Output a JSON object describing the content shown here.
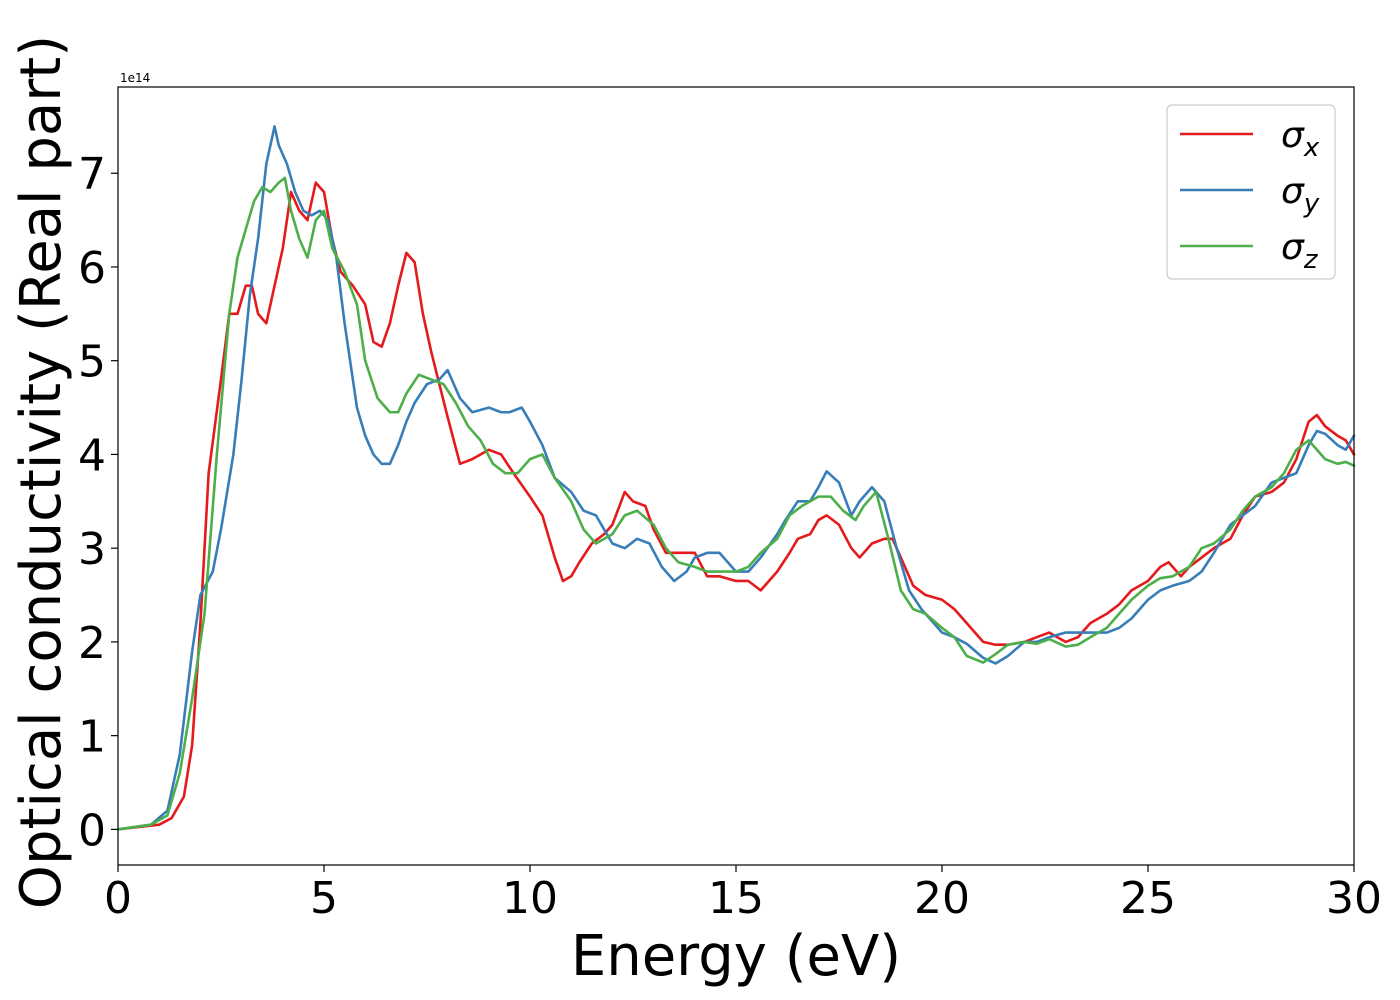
{
  "chart_data": {
    "type": "line",
    "title": "",
    "xlabel": "Energy (eV)",
    "ylabel": "Optical conductivity (Real part)",
    "offset_label": "1e14",
    "xlim": [
      0,
      30
    ],
    "ylim": [
      -0.38,
      7.92
    ],
    "y_scale": "1e14",
    "xticks": [
      0,
      5,
      10,
      15,
      20,
      25,
      30
    ],
    "yticks": [
      0,
      1,
      2,
      3,
      4,
      5,
      6,
      7
    ],
    "grid": false,
    "legend_placement": "top-right",
    "series": [
      {
        "name": "σx",
        "legend_base": "σ",
        "legend_sub": "x",
        "color": "#e41a1c",
        "x": [
          0,
          1,
          1.3,
          1.6,
          1.8,
          2.0,
          2.2,
          2.5,
          2.7,
          2.9,
          3.1,
          3.25,
          3.4,
          3.6,
          3.8,
          4.0,
          4.2,
          4.4,
          4.6,
          4.8,
          5.0,
          5.2,
          5.4,
          5.7,
          6.0,
          6.2,
          6.4,
          6.6,
          6.8,
          7.0,
          7.2,
          7.4,
          7.6,
          8.0,
          8.3,
          8.6,
          9.0,
          9.3,
          9.6,
          10.0,
          10.3,
          10.6,
          10.8,
          11.0,
          11.2,
          11.5,
          11.8,
          12.0,
          12.3,
          12.5,
          12.8,
          13.0,
          13.3,
          13.6,
          14.0,
          14.3,
          14.6,
          15.0,
          15.3,
          15.6,
          16.0,
          16.3,
          16.5,
          16.8,
          17.0,
          17.2,
          17.5,
          17.8,
          18.0,
          18.3,
          18.6,
          18.8,
          19.0,
          19.3,
          19.6,
          20.0,
          20.3,
          20.6,
          21.0,
          21.3,
          21.6,
          22.0,
          22.3,
          22.6,
          23.0,
          23.3,
          23.6,
          24.0,
          24.3,
          24.6,
          25.0,
          25.3,
          25.5,
          25.8,
          26.0,
          26.3,
          26.6,
          27.0,
          27.3,
          27.6,
          28.0,
          28.3,
          28.6,
          28.9,
          29.1,
          29.3,
          29.6,
          29.8,
          30.0
        ],
        "values": [
          0,
          0.05,
          0.12,
          0.35,
          0.9,
          2.2,
          3.8,
          4.8,
          5.5,
          5.5,
          5.8,
          5.8,
          5.5,
          5.4,
          5.8,
          6.2,
          6.8,
          6.6,
          6.5,
          6.9,
          6.8,
          6.3,
          5.95,
          5.8,
          5.6,
          5.2,
          5.15,
          5.4,
          5.8,
          6.15,
          6.05,
          5.5,
          5.1,
          4.4,
          3.9,
          3.95,
          4.05,
          4.0,
          3.8,
          3.55,
          3.35,
          2.9,
          2.65,
          2.7,
          2.85,
          3.05,
          3.15,
          3.25,
          3.6,
          3.5,
          3.45,
          3.2,
          2.95,
          2.95,
          2.95,
          2.7,
          2.7,
          2.65,
          2.65,
          2.55,
          2.75,
          2.95,
          3.1,
          3.15,
          3.3,
          3.35,
          3.25,
          3.0,
          2.9,
          3.05,
          3.1,
          3.1,
          2.9,
          2.6,
          2.5,
          2.45,
          2.35,
          2.2,
          2.0,
          1.97,
          1.97,
          2.0,
          2.05,
          2.1,
          2.0,
          2.05,
          2.2,
          2.3,
          2.4,
          2.55,
          2.65,
          2.8,
          2.85,
          2.7,
          2.8,
          2.9,
          3.0,
          3.1,
          3.35,
          3.55,
          3.6,
          3.7,
          3.95,
          4.35,
          4.42,
          4.3,
          4.2,
          4.15,
          4.0
        ]
      },
      {
        "name": "σy",
        "legend_base": "σ",
        "legend_sub": "y",
        "color": "#377eb8",
        "x": [
          0,
          0.8,
          1.2,
          1.5,
          1.8,
          2.0,
          2.3,
          2.5,
          2.8,
          3.0,
          3.2,
          3.4,
          3.6,
          3.8,
          3.9,
          4.1,
          4.3,
          4.5,
          4.7,
          4.9,
          5.1,
          5.3,
          5.5,
          5.8,
          6.0,
          6.2,
          6.4,
          6.6,
          6.8,
          7.0,
          7.2,
          7.5,
          7.8,
          8.0,
          8.3,
          8.6,
          9.0,
          9.3,
          9.5,
          9.8,
          10.0,
          10.3,
          10.6,
          11.0,
          11.3,
          11.6,
          12.0,
          12.3,
          12.6,
          12.9,
          13.2,
          13.5,
          13.8,
          14.0,
          14.3,
          14.6,
          15.0,
          15.3,
          15.6,
          16.0,
          16.2,
          16.5,
          16.8,
          17.0,
          17.2,
          17.5,
          17.8,
          18.0,
          18.3,
          18.6,
          18.9,
          19.2,
          19.5,
          19.8,
          20.0,
          20.3,
          20.6,
          21.0,
          21.3,
          21.6,
          22.0,
          22.3,
          22.6,
          23.0,
          23.3,
          23.6,
          24.0,
          24.3,
          24.6,
          25.0,
          25.3,
          25.6,
          26.0,
          26.3,
          26.6,
          27.0,
          27.3,
          27.6,
          28.0,
          28.3,
          28.6,
          28.9,
          29.1,
          29.3,
          29.6,
          29.8,
          30.0
        ],
        "values": [
          0,
          0.05,
          0.2,
          0.8,
          1.9,
          2.5,
          2.75,
          3.2,
          4.0,
          4.8,
          5.7,
          6.3,
          7.1,
          7.5,
          7.3,
          7.1,
          6.8,
          6.6,
          6.55,
          6.6,
          6.5,
          6.1,
          5.4,
          4.5,
          4.2,
          4.0,
          3.9,
          3.9,
          4.1,
          4.35,
          4.55,
          4.75,
          4.8,
          4.9,
          4.6,
          4.45,
          4.5,
          4.45,
          4.45,
          4.5,
          4.35,
          4.1,
          3.75,
          3.6,
          3.4,
          3.35,
          3.05,
          3.0,
          3.1,
          3.05,
          2.8,
          2.65,
          2.75,
          2.9,
          2.95,
          2.95,
          2.75,
          2.75,
          2.9,
          3.15,
          3.3,
          3.5,
          3.5,
          3.65,
          3.82,
          3.7,
          3.35,
          3.5,
          3.65,
          3.5,
          3.0,
          2.55,
          2.35,
          2.2,
          2.1,
          2.05,
          1.98,
          1.83,
          1.77,
          1.85,
          2.0,
          2.0,
          2.05,
          2.1,
          2.1,
          2.1,
          2.1,
          2.15,
          2.25,
          2.45,
          2.55,
          2.6,
          2.65,
          2.75,
          2.95,
          3.25,
          3.35,
          3.45,
          3.7,
          3.75,
          3.8,
          4.1,
          4.25,
          4.22,
          4.1,
          4.05,
          4.2
        ]
      },
      {
        "name": "σz",
        "legend_base": "σ",
        "legend_sub": "z",
        "color": "#4daf4a",
        "x": [
          0,
          0.8,
          1.2,
          1.5,
          1.8,
          2.1,
          2.4,
          2.7,
          2.9,
          3.1,
          3.3,
          3.5,
          3.7,
          3.9,
          4.05,
          4.2,
          4.4,
          4.6,
          4.8,
          5.0,
          5.2,
          5.5,
          5.8,
          6.0,
          6.3,
          6.6,
          6.8,
          7.0,
          7.3,
          7.6,
          7.9,
          8.2,
          8.5,
          8.8,
          9.1,
          9.4,
          9.7,
          10.0,
          10.3,
          10.6,
          11.0,
          11.3,
          11.6,
          12.0,
          12.3,
          12.6,
          13.0,
          13.3,
          13.6,
          14.0,
          14.3,
          14.6,
          15.0,
          15.3,
          15.6,
          16.0,
          16.3,
          16.6,
          17.0,
          17.3,
          17.6,
          17.9,
          18.1,
          18.4,
          18.7,
          19.0,
          19.3,
          19.6,
          20.0,
          20.3,
          20.6,
          21.0,
          21.3,
          21.6,
          22.0,
          22.3,
          22.6,
          23.0,
          23.3,
          23.6,
          24.0,
          24.3,
          24.6,
          25.0,
          25.3,
          25.6,
          26.0,
          26.3,
          26.6,
          27.0,
          27.3,
          27.6,
          28.0,
          28.3,
          28.6,
          28.9,
          29.1,
          29.3,
          29.6,
          29.8,
          30.0
        ],
        "values": [
          0,
          0.05,
          0.15,
          0.6,
          1.4,
          2.3,
          4.0,
          5.5,
          6.1,
          6.4,
          6.7,
          6.85,
          6.8,
          6.9,
          6.95,
          6.6,
          6.3,
          6.1,
          6.5,
          6.6,
          6.2,
          5.95,
          5.6,
          5.0,
          4.6,
          4.45,
          4.45,
          4.65,
          4.85,
          4.8,
          4.75,
          4.55,
          4.3,
          4.15,
          3.9,
          3.8,
          3.8,
          3.95,
          4.0,
          3.75,
          3.5,
          3.2,
          3.05,
          3.15,
          3.35,
          3.4,
          3.25,
          3.0,
          2.85,
          2.8,
          2.75,
          2.75,
          2.75,
          2.8,
          2.95,
          3.1,
          3.35,
          3.45,
          3.55,
          3.55,
          3.4,
          3.3,
          3.45,
          3.6,
          3.1,
          2.55,
          2.35,
          2.3,
          2.15,
          2.05,
          1.85,
          1.78,
          1.87,
          1.97,
          2.0,
          1.98,
          2.03,
          1.95,
          1.97,
          2.05,
          2.15,
          2.3,
          2.45,
          2.6,
          2.68,
          2.7,
          2.8,
          3.0,
          3.05,
          3.2,
          3.4,
          3.55,
          3.65,
          3.8,
          4.05,
          4.15,
          4.05,
          3.95,
          3.9,
          3.92,
          3.88
        ]
      }
    ]
  }
}
